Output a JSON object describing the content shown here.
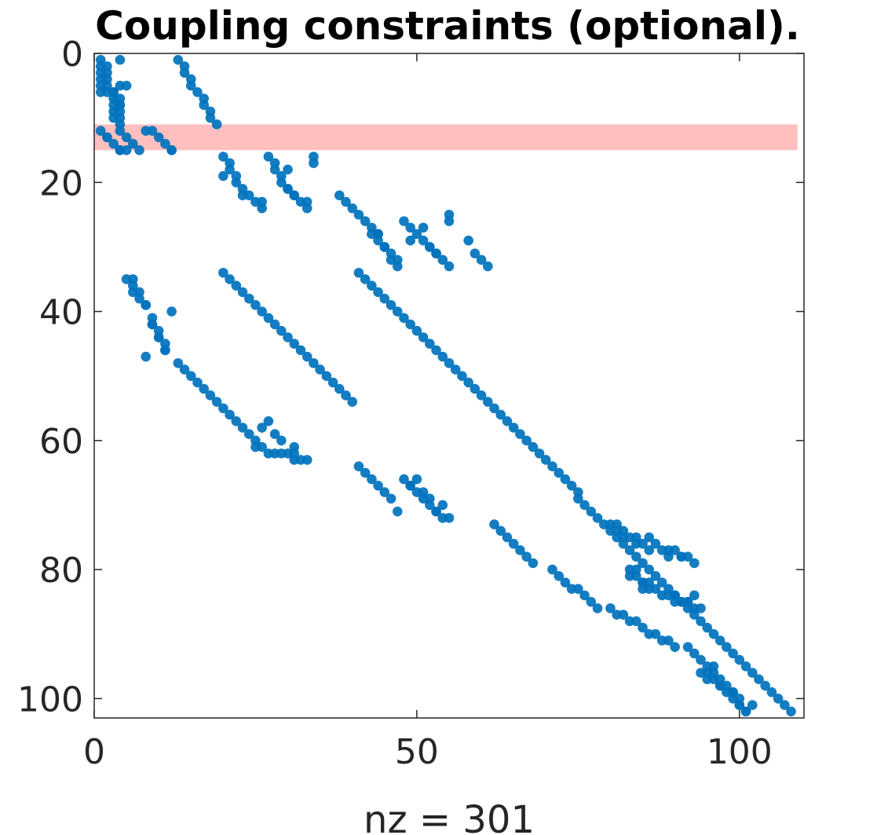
{
  "chart_data": {
    "type": "scatter",
    "subtype": "sparsity-pattern",
    "title": "Coupling constraints (optional).",
    "xlabel": "nz = 301",
    "ylabel": "",
    "xlim": [
      0,
      110
    ],
    "ylim": [
      103,
      0
    ],
    "y_axis_reversed": true,
    "x_ticks": [
      0,
      50,
      100
    ],
    "y_ticks": [
      0,
      20,
      40,
      60,
      80,
      100
    ],
    "grid": false,
    "legend": "none",
    "nz": 301,
    "marker_color": "#0072BD",
    "highlight": {
      "row_from": 11,
      "row_to": 15,
      "col_from": 0,
      "col_to": 109,
      "color": "#FFBFBF"
    },
    "segments": [
      {
        "x": [
          1,
          1
        ],
        "y": [
          1,
          6
        ]
      },
      {
        "x": [
          2,
          2
        ],
        "y": [
          2,
          6
        ]
      },
      {
        "x": [
          3,
          3
        ],
        "y": [
          6,
          10
        ]
      },
      {
        "x": [
          4,
          4
        ],
        "y": [
          7,
          10
        ]
      },
      {
        "x": [
          1,
          4
        ],
        "y": [
          12,
          15
        ]
      },
      {
        "x": [
          4,
          7
        ],
        "y": [
          12,
          15
        ]
      },
      {
        "x": [
          9,
          12
        ],
        "y": [
          12,
          15
        ]
      },
      {
        "x": [
          13,
          19
        ],
        "y": [
          1,
          11
        ]
      },
      {
        "x": [
          20,
          22
        ],
        "y": [
          16,
          19
        ]
      },
      {
        "x": [
          22,
          26
        ],
        "y": [
          20,
          24
        ]
      },
      {
        "x": [
          27,
          29
        ],
        "y": [
          16,
          19
        ]
      },
      {
        "x": [
          29,
          33
        ],
        "y": [
          20,
          24
        ]
      },
      {
        "x": [
          38,
          44
        ],
        "y": [
          22,
          28
        ]
      },
      {
        "x": [
          43,
          47
        ],
        "y": [
          28,
          32
        ]
      },
      {
        "x": [
          48,
          52
        ],
        "y": [
          26,
          30
        ]
      },
      {
        "x": [
          52,
          55
        ],
        "y": [
          30,
          33
        ]
      },
      {
        "x": [
          59,
          61
        ],
        "y": [
          31,
          33
        ]
      },
      {
        "x": [
          5,
          8
        ],
        "y": [
          35,
          39
        ]
      },
      {
        "x": [
          9,
          11
        ],
        "y": [
          42,
          46
        ]
      },
      {
        "x": [
          20,
          40
        ],
        "y": [
          34,
          54
        ]
      },
      {
        "x": [
          41,
          108
        ],
        "y": [
          34,
          102
        ]
      },
      {
        "x": [
          13,
          25
        ],
        "y": [
          48,
          60
        ]
      },
      {
        "x": [
          25,
          33
        ],
        "y": [
          61,
          63
        ]
      },
      {
        "x": [
          41,
          46
        ],
        "y": [
          64,
          69
        ]
      },
      {
        "x": [
          48,
          54
        ],
        "y": [
          66,
          72
        ]
      },
      {
        "x": [
          62,
          68
        ],
        "y": [
          73,
          79
        ]
      },
      {
        "x": [
          71,
          78
        ],
        "y": [
          80,
          86
        ]
      },
      {
        "x": [
          80,
          84
        ],
        "y": [
          73,
          76
        ]
      },
      {
        "x": [
          83,
          86
        ],
        "y": [
          80,
          83
        ]
      },
      {
        "x": [
          84,
          86
        ],
        "y": [
          75,
          77
        ]
      },
      {
        "x": [
          86,
          90
        ],
        "y": [
          82,
          85
        ]
      },
      {
        "x": [
          90,
          93
        ],
        "y": [
          77,
          79
        ]
      },
      {
        "x": [
          90,
          94
        ],
        "y": [
          84,
          86
        ]
      },
      {
        "x": [
          80,
          90
        ],
        "y": [
          86,
          92
        ]
      },
      {
        "x": [
          92,
          96
        ],
        "y": [
          92,
          96
        ]
      },
      {
        "x": [
          94,
          97
        ],
        "y": [
          96,
          98
        ]
      },
      {
        "x": [
          97,
          100
        ],
        "y": [
          98,
          100
        ]
      },
      {
        "x": [
          99,
          101
        ],
        "y": [
          100,
          102
        ]
      }
    ],
    "points": [
      [
        4,
        1
      ],
      [
        4,
        5
      ],
      [
        5,
        5
      ],
      [
        4,
        8
      ],
      [
        4,
        11
      ],
      [
        4,
        15
      ],
      [
        5,
        15
      ],
      [
        2,
        13
      ],
      [
        8,
        12
      ],
      [
        12,
        15
      ],
      [
        3,
        6
      ],
      [
        20,
        19
      ],
      [
        23,
        22
      ],
      [
        26,
        23
      ],
      [
        30,
        18
      ],
      [
        30,
        21
      ],
      [
        31,
        22
      ],
      [
        33,
        23
      ],
      [
        34,
        16
      ],
      [
        34,
        17
      ],
      [
        44,
        28
      ],
      [
        45,
        30
      ],
      [
        46,
        32
      ],
      [
        47,
        33
      ],
      [
        49,
        29
      ],
      [
        51,
        27
      ],
      [
        53,
        31
      ],
      [
        55,
        25
      ],
      [
        55,
        26
      ],
      [
        58,
        29
      ],
      [
        6,
        35
      ],
      [
        6,
        37
      ],
      [
        8,
        39
      ],
      [
        9,
        41
      ],
      [
        9,
        42
      ],
      [
        12,
        40
      ],
      [
        10,
        44
      ],
      [
        11,
        46
      ],
      [
        8,
        47
      ],
      [
        26,
        58
      ],
      [
        27,
        57
      ],
      [
        28,
        59
      ],
      [
        31,
        62
      ],
      [
        31,
        61
      ],
      [
        29,
        60
      ],
      [
        47,
        71
      ],
      [
        49,
        67
      ],
      [
        50,
        66
      ],
      [
        51,
        68
      ],
      [
        52,
        69
      ],
      [
        54,
        70
      ],
      [
        53,
        71
      ],
      [
        55,
        72
      ],
      [
        81,
        73
      ],
      [
        82,
        74
      ],
      [
        83,
        81
      ],
      [
        84,
        80
      ],
      [
        85,
        82
      ],
      [
        85,
        83
      ],
      [
        86,
        75
      ],
      [
        87,
        76
      ],
      [
        88,
        77
      ],
      [
        89,
        78
      ],
      [
        89,
        77
      ],
      [
        90,
        84
      ],
      [
        91,
        78
      ],
      [
        92,
        85
      ],
      [
        93,
        84
      ],
      [
        95,
        96
      ],
      [
        96,
        95
      ],
      [
        97,
        97
      ],
      [
        98,
        98
      ],
      [
        99,
        99
      ],
      [
        100,
        101
      ],
      [
        101,
        102
      ],
      [
        102,
        101
      ]
    ]
  }
}
